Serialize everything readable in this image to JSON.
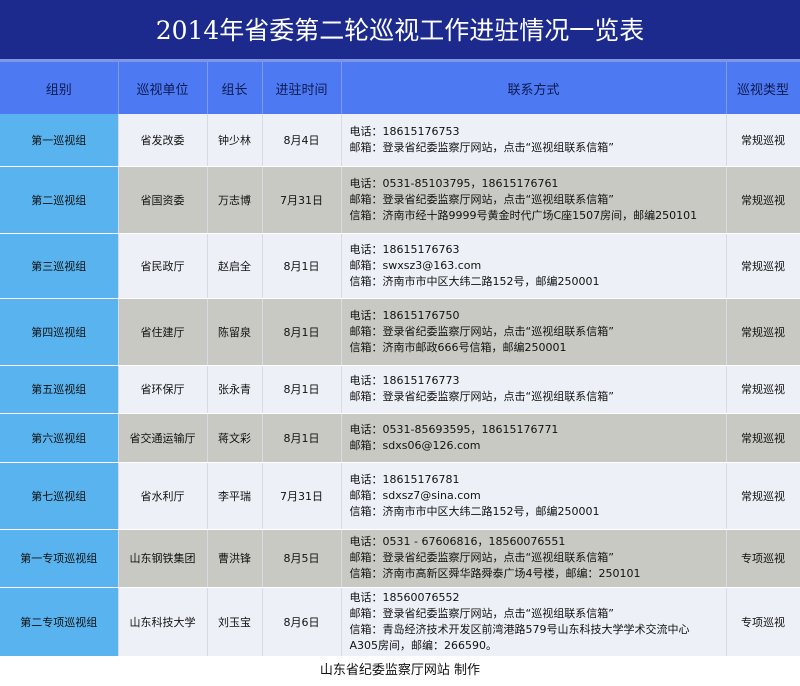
{
  "title": "2014年省委第二轮巡视工作进驻情况一览表",
  "colors": {
    "title_bg": "#1b2a8c",
    "header_bg": "#4d7af2",
    "group_col": "#58b3ef",
    "row_light": "#edf0f6",
    "row_dark": "#c9c9c4"
  },
  "headers": [
    "组别",
    "巡视单位",
    "组长",
    "进驻时间",
    "联系方式",
    "巡视类型"
  ],
  "rows": [
    {
      "group": "第一巡视组",
      "unit": "省发改委",
      "leader": "钟少林",
      "date": "8月4日",
      "contact": [
        "电话：18615176753",
        "邮箱：登录省纪委监察厅网站，点击“巡视组联系信箱”"
      ],
      "type": "常规巡视"
    },
    {
      "group": "第二巡视组",
      "unit": "省国资委",
      "leader": "万志博",
      "date": "7月31日",
      "contact": [
        "电话：0531-85103795，18615176761",
        "邮箱：登录省纪委监察厅网站，点击“巡视组联系信箱”",
        "信箱：济南市经十路9999号黄金时代广场C座1507房间，邮编250101"
      ],
      "type": "常规巡视"
    },
    {
      "group": "第三巡视组",
      "unit": "省民政厅",
      "leader": "赵启全",
      "date": "8月1日",
      "contact": [
        "电话：18615176763",
        "邮箱：swxsz3@163.com",
        "信箱：济南市市中区大纬二路152号，邮编250001"
      ],
      "type": "常规巡视"
    },
    {
      "group": "第四巡视组",
      "unit": "省住建厅",
      "leader": "陈留泉",
      "date": "8月1日",
      "contact": [
        "电话：18615176750",
        "邮箱：登录省纪委监察厅网站，点击“巡视组联系信箱”",
        "信箱：济南市邮政666号信箱，邮编250001"
      ],
      "type": "常规巡视"
    },
    {
      "group": "第五巡视组",
      "unit": "省环保厅",
      "leader": "张永青",
      "date": "8月1日",
      "contact": [
        "电话：18615176773",
        "邮箱：登录省纪委监察厅网站，点击“巡视组联系信箱”"
      ],
      "type": "常规巡视"
    },
    {
      "group": "第六巡视组",
      "unit": "省交通运输厅",
      "leader": "蒋文彩",
      "date": "8月1日",
      "contact": [
        "电话：0531-85693595，18615176771",
        "邮箱：sdxs06@126.com"
      ],
      "type": "常规巡视"
    },
    {
      "group": "第七巡视组",
      "unit": "省水利厅",
      "leader": "李平瑞",
      "date": "7月31日",
      "contact": [
        "电话：18615176781",
        "邮箱：sdxsz7@sina.com",
        "信箱：济南市市中区大纬二路152号，邮编250001"
      ],
      "type": "常规巡视"
    },
    {
      "group": "第一专项巡视组",
      "unit": "山东钢铁集团",
      "leader": "曹洪锋",
      "date": "8月5日",
      "contact": [
        "电话：0531 - 67606816，18560076551",
        "邮箱：登录省纪委监察厅网站，点击“巡视组联系信箱”",
        "信箱：济南市高新区舜华路舜泰广场4号楼，邮编：250101"
      ],
      "type": "专项巡视"
    },
    {
      "group": "第二专项巡视组",
      "unit": "山东科技大学",
      "leader": "刘玉宝",
      "date": "8月6日",
      "contact": [
        "电话：18560076552",
        "邮箱：登录省纪委监察厅网站，点击“巡视组联系信箱”",
        "信箱：青岛经济技术开发区前湾港路579号山东科技大学学术交流中心",
        "A305房间，邮编：266590。"
      ],
      "type": "专项巡视"
    }
  ],
  "footer": "山东省纪委监察厅网站 制作"
}
